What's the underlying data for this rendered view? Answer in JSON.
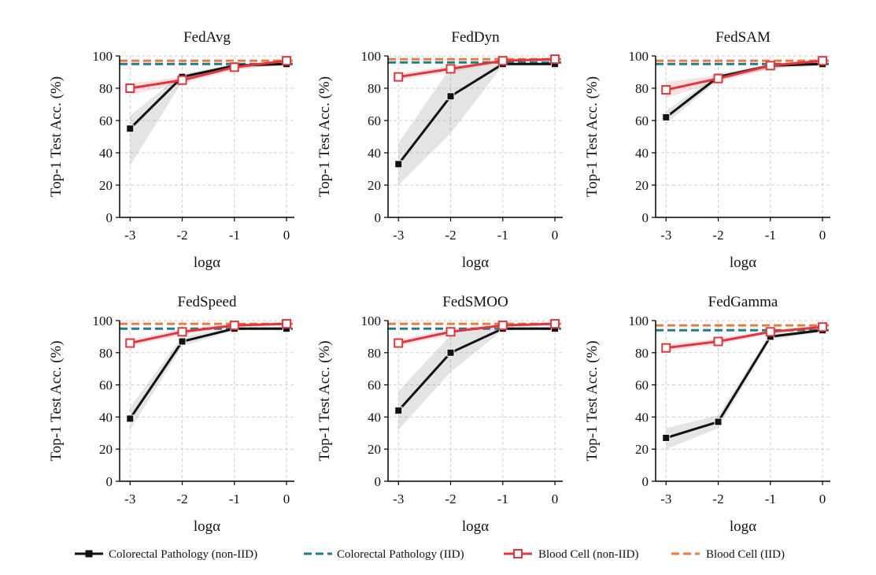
{
  "legend": [
    {
      "label": "Colorectal Pathology (non-IID)",
      "color": "#111111",
      "style": "solid-square"
    },
    {
      "label": "Colorectal Pathology (IID)",
      "color": "#1a7f8f",
      "style": "dashed"
    },
    {
      "label": "Blood Cell (non-IID)",
      "color": "#e0373f",
      "style": "solid-open-square"
    },
    {
      "label": "Blood Cell (IID)",
      "color": "#ec7a3c",
      "style": "dashed"
    }
  ],
  "chart_data": [
    {
      "type": "line",
      "title": "FedAvg",
      "xlabel": "logα",
      "ylabel": "Top-1 Test Acc. (%)",
      "x": [
        -3,
        -2,
        -1,
        0
      ],
      "ylim": [
        0,
        100
      ],
      "yticks": [
        0,
        20,
        40,
        60,
        80,
        100
      ],
      "grid": true,
      "series": [
        {
          "name": "Colorectal Pathology (non-IID)",
          "values": [
            55,
            87,
            94,
            95
          ],
          "lower": [
            32,
            84,
            92,
            94
          ],
          "upper": [
            63,
            89,
            95,
            96
          ]
        },
        {
          "name": "Blood Cell (non-IID)",
          "values": [
            80,
            85,
            93,
            97
          ],
          "lower": [
            76,
            83,
            91,
            96
          ],
          "upper": [
            83,
            87,
            94,
            98
          ]
        }
      ],
      "iid": {
        "Colorectal Pathology (IID)": 95,
        "Blood Cell (IID)": 97
      }
    },
    {
      "type": "line",
      "title": "FedDyn",
      "xlabel": "logα",
      "ylabel": "Top-1 Test Acc. (%)",
      "x": [
        -3,
        -2,
        -1,
        0
      ],
      "ylim": [
        0,
        100
      ],
      "yticks": [
        0,
        20,
        40,
        60,
        80,
        100
      ],
      "grid": true,
      "series": [
        {
          "name": "Colorectal Pathology (non-IID)",
          "values": [
            33,
            75,
            95,
            95
          ],
          "lower": [
            20,
            52,
            94,
            94
          ],
          "upper": [
            46,
            93,
            96,
            96
          ]
        },
        {
          "name": "Blood Cell (non-IID)",
          "values": [
            87,
            92,
            97,
            98
          ],
          "lower": [
            85,
            90,
            96,
            97
          ],
          "upper": [
            89,
            94,
            98,
            99
          ]
        }
      ],
      "iid": {
        "Colorectal Pathology (IID)": 96,
        "Blood Cell (IID)": 98
      }
    },
    {
      "type": "line",
      "title": "FedSAM",
      "xlabel": "logα",
      "ylabel": "Top-1 Test Acc. (%)",
      "x": [
        -3,
        -2,
        -1,
        0
      ],
      "ylim": [
        0,
        100
      ],
      "yticks": [
        0,
        20,
        40,
        60,
        80,
        100
      ],
      "grid": true,
      "series": [
        {
          "name": "Colorectal Pathology (non-IID)",
          "values": [
            62,
            87,
            94,
            95
          ],
          "lower": [
            58,
            85,
            92,
            94
          ],
          "upper": [
            66,
            89,
            95,
            96
          ]
        },
        {
          "name": "Blood Cell (non-IID)",
          "values": [
            79,
            86,
            94,
            97
          ],
          "lower": [
            74,
            84,
            92,
            96
          ],
          "upper": [
            84,
            88,
            95,
            98
          ]
        }
      ],
      "iid": {
        "Colorectal Pathology (IID)": 95,
        "Blood Cell (IID)": 97
      }
    },
    {
      "type": "line",
      "title": "FedSpeed",
      "xlabel": "logα",
      "ylabel": "Top-1 Test Acc. (%)",
      "x": [
        -3,
        -2,
        -1,
        0
      ],
      "ylim": [
        0,
        100
      ],
      "yticks": [
        0,
        20,
        40,
        60,
        80,
        100
      ],
      "grid": true,
      "series": [
        {
          "name": "Colorectal Pathology (non-IID)",
          "values": [
            39,
            87,
            95,
            95
          ],
          "lower": [
            32,
            84,
            94,
            94
          ],
          "upper": [
            46,
            90,
            96,
            96
          ]
        },
        {
          "name": "Blood Cell (non-IID)",
          "values": [
            86,
            93,
            97,
            98
          ],
          "lower": [
            84,
            91,
            96,
            97
          ],
          "upper": [
            88,
            95,
            98,
            99
          ]
        }
      ],
      "iid": {
        "Colorectal Pathology (IID)": 95,
        "Blood Cell (IID)": 98
      }
    },
    {
      "type": "line",
      "title": "FedSMOO",
      "xlabel": "logα",
      "ylabel": "Top-1 Test Acc. (%)",
      "x": [
        -3,
        -2,
        -1,
        0
      ],
      "ylim": [
        0,
        100
      ],
      "yticks": [
        0,
        20,
        40,
        60,
        80,
        100
      ],
      "grid": true,
      "series": [
        {
          "name": "Colorectal Pathology (non-IID)",
          "values": [
            44,
            80,
            95,
            95
          ],
          "lower": [
            32,
            68,
            94,
            94
          ],
          "upper": [
            56,
            91,
            96,
            96
          ]
        },
        {
          "name": "Blood Cell (non-IID)",
          "values": [
            86,
            93,
            97,
            98
          ],
          "lower": [
            84,
            91,
            96,
            97
          ],
          "upper": [
            88,
            95,
            98,
            99
          ]
        }
      ],
      "iid": {
        "Colorectal Pathology (IID)": 95,
        "Blood Cell (IID)": 98
      }
    },
    {
      "type": "line",
      "title": "FedGamma",
      "xlabel": "logα",
      "ylabel": "Top-1 Test Acc. (%)",
      "x": [
        -3,
        -2,
        -1,
        0
      ],
      "ylim": [
        0,
        100
      ],
      "yticks": [
        0,
        20,
        40,
        60,
        80,
        100
      ],
      "grid": true,
      "series": [
        {
          "name": "Colorectal Pathology (non-IID)",
          "values": [
            27,
            37,
            90,
            94
          ],
          "lower": [
            20,
            33,
            88,
            93
          ],
          "upper": [
            33,
            41,
            92,
            95
          ]
        },
        {
          "name": "Blood Cell (non-IID)",
          "values": [
            83,
            87,
            93,
            96
          ],
          "lower": [
            81,
            85,
            92,
            95
          ],
          "upper": [
            85,
            89,
            94,
            97
          ]
        }
      ],
      "iid": {
        "Colorectal Pathology (IID)": 94,
        "Blood Cell (IID)": 97
      }
    }
  ]
}
